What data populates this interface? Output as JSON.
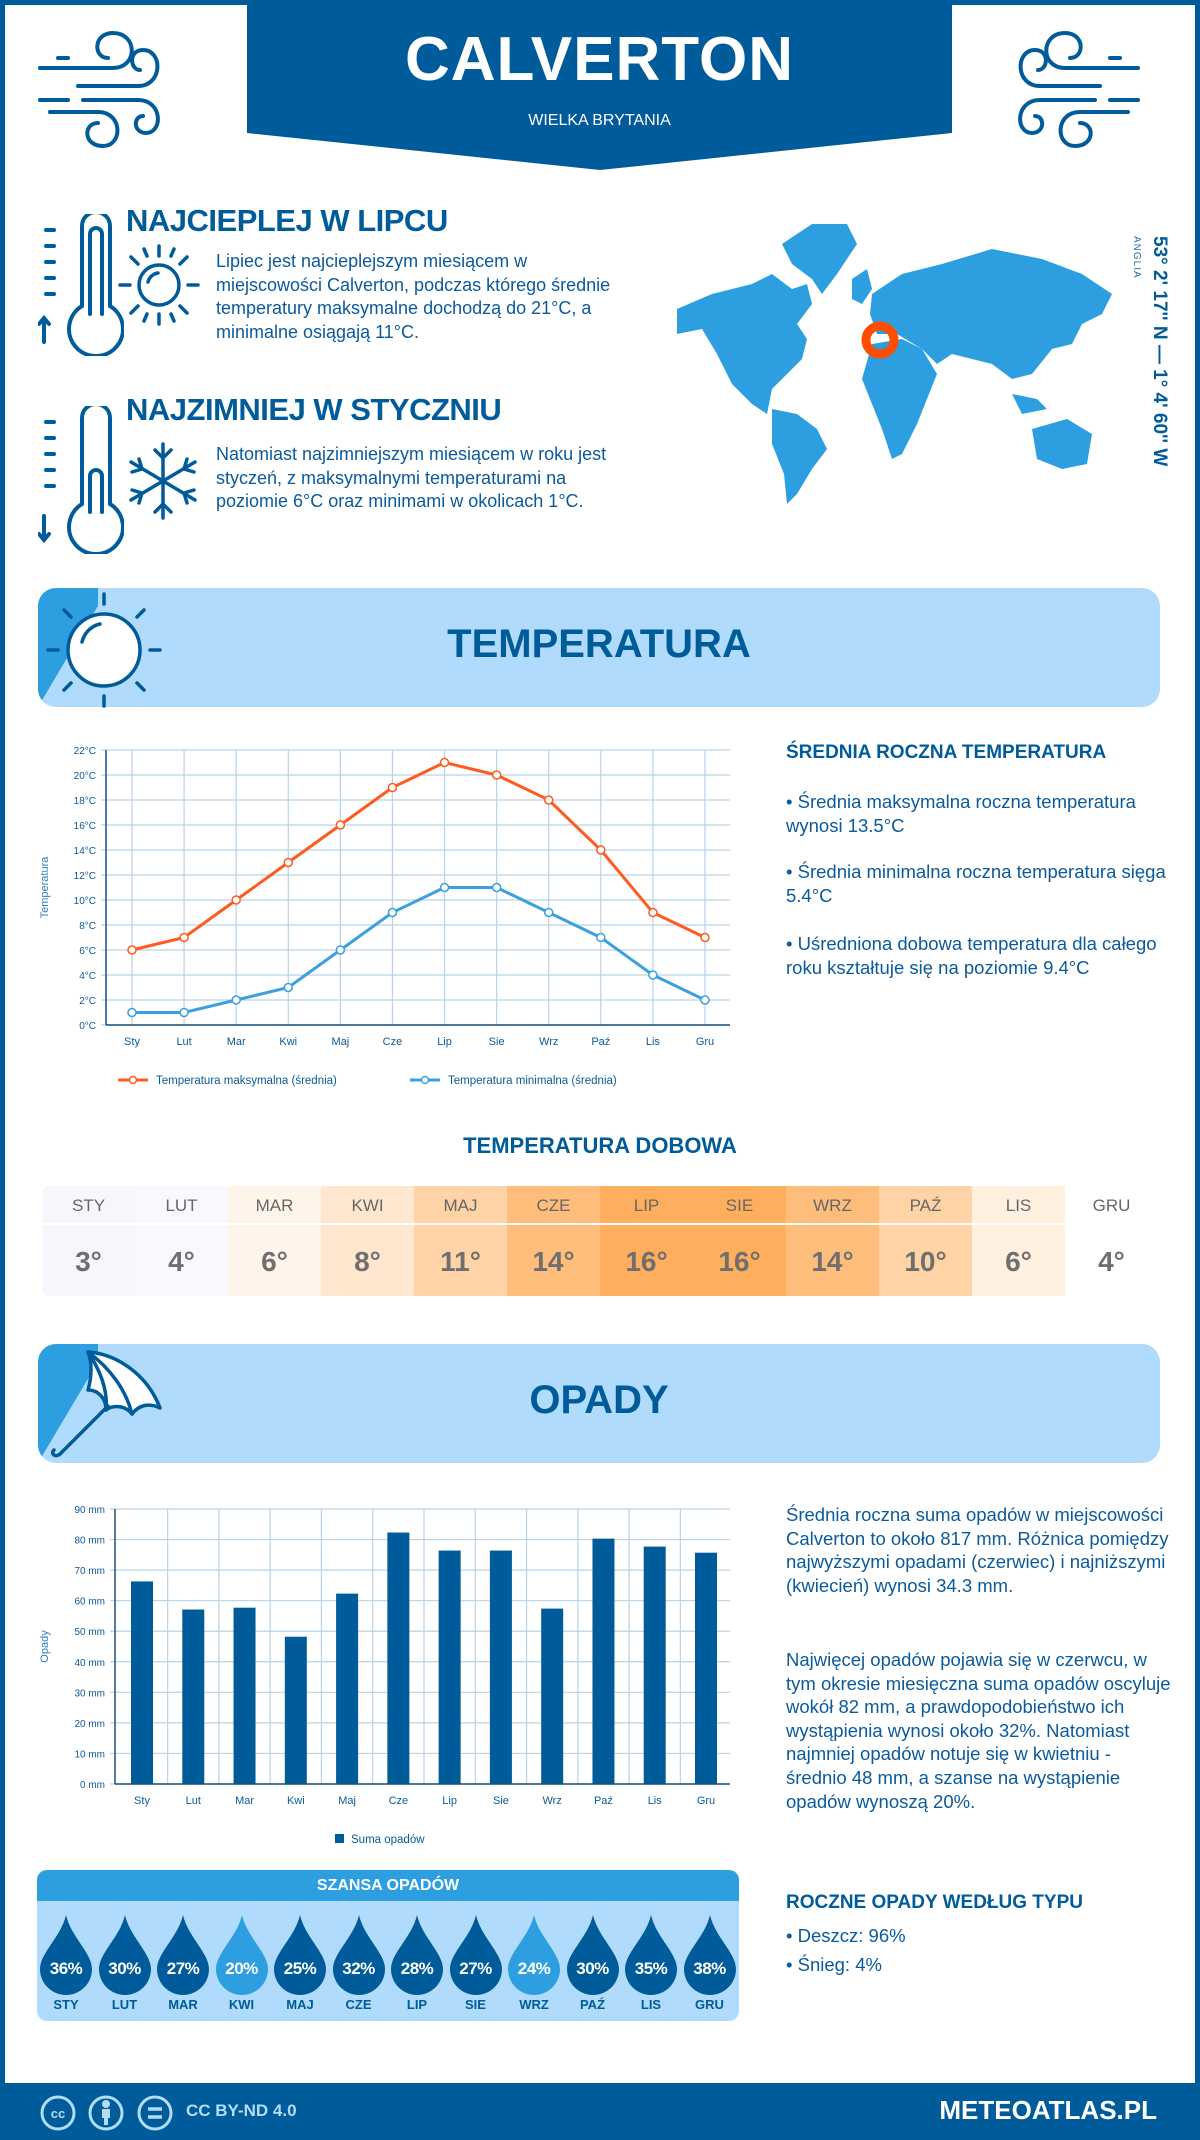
{
  "header": {
    "title": "CALVERTON",
    "subtitle": "WIELKA BRYTANIA"
  },
  "warmest": {
    "heading": "NAJCIEPLEJ W LIPCU",
    "text": "Lipiec jest najcieplejszym miesiącem w miejscowości Calverton, podczas którego średnie temperatury maksymalne dochodzą do 21°C, a minimalne osiągają 11°C."
  },
  "coldest": {
    "heading": "NAJZIMNIEJ W STYCZNIU",
    "text": "Natomiast najzimniejszym miesiącem w roku jest styczeń, z maksymalnymi temperaturami na poziomie 6°C oraz minimami w okolicach 1°C."
  },
  "location": {
    "coordinates": "53° 2' 17'' N — 1° 4' 60'' W",
    "region": "ANGLIA"
  },
  "temperature_section": {
    "title": "TEMPERATURA"
  },
  "annual_temp": {
    "heading": "ŚREDNIA ROCZNA TEMPERATURA",
    "bullets": [
      "• Średnia maksymalna roczna temperatura wynosi 13.5°C",
      "• Średnia minimalna roczna temperatura sięga 5.4°C",
      "• Uśredniona dobowa temperatura dla całego roku kształtuje się na poziomie 9.4°C"
    ]
  },
  "daily_temp": {
    "title": "TEMPERATURA DOBOWA",
    "months": [
      "STY",
      "LUT",
      "MAR",
      "KWI",
      "MAJ",
      "CZE",
      "LIP",
      "SIE",
      "WRZ",
      "PAŹ",
      "LIS",
      "GRU"
    ],
    "values": [
      "3°",
      "4°",
      "6°",
      "8°",
      "11°",
      "14°",
      "16°",
      "16°",
      "14°",
      "10°",
      "6°",
      "4°"
    ],
    "colors": [
      "#f5f7fd",
      "#f8f8fe",
      "#fff4ea",
      "#ffe6cf",
      "#ffd3a5",
      "#ffbd7c",
      "#ffae5e",
      "#ffae5e",
      "#ffbd7c",
      "#ffd3a5",
      "#fff0e0",
      "#ffffff"
    ]
  },
  "precip_section": {
    "title": "OPADY"
  },
  "precip_text": {
    "p1": "Średnia roczna suma opadów w miejscowości Calverton to około 817 mm. Różnica pomiędzy najwyższymi opadami (czerwiec) i najniższymi (kwiecień) wynosi 34.3 mm.",
    "p2": "Najwięcej opadów pojawia się w czerwcu, w tym okresie miesięczna suma opadów oscyluje wokół 82 mm, a prawdopodobieństwo ich wystąpienia wynosi około 32%. Natomiast najmniej opadów notuje się w kwietniu - średnio 48 mm, a szanse na wystąpienie opadów wynoszą 20%."
  },
  "chance": {
    "title": "SZANSA OPADÓW",
    "months": [
      "STY",
      "LUT",
      "MAR",
      "KWI",
      "MAJ",
      "CZE",
      "LIP",
      "SIE",
      "WRZ",
      "PAŹ",
      "LIS",
      "GRU"
    ],
    "values": [
      "36%",
      "30%",
      "27%",
      "20%",
      "25%",
      "32%",
      "28%",
      "27%",
      "24%",
      "30%",
      "35%",
      "38%"
    ],
    "highlight": [
      false,
      false,
      false,
      true,
      false,
      false,
      false,
      false,
      true,
      false,
      false,
      false
    ]
  },
  "precip_type": {
    "heading": "ROCZNE OPADY WEDŁUG TYPU",
    "items": [
      "• Deszcz: 96%",
      "• Śnieg: 4%"
    ]
  },
  "footer": {
    "license": "CC BY-ND 4.0",
    "brand": "METEOATLAS.PL"
  },
  "colors": {
    "dark": "#005b9a",
    "mid": "#2d9fe0",
    "light": "#b0dbfc",
    "max": "#ff5a1f",
    "min": "#3aa0e0"
  },
  "chart_data": [
    {
      "type": "line",
      "categories": [
        "Sty",
        "Lut",
        "Mar",
        "Kwi",
        "Maj",
        "Cze",
        "Lip",
        "Sie",
        "Wrz",
        "Paź",
        "Lis",
        "Gru"
      ],
      "series": [
        {
          "name": "Temperatura maksymalna (średnia)",
          "values": [
            6,
            7,
            10,
            13,
            16,
            19,
            21,
            20,
            18,
            14,
            9,
            7
          ]
        },
        {
          "name": "Temperatura minimalna (średnia)",
          "values": [
            1,
            1,
            2,
            3,
            6,
            9,
            11,
            11,
            9,
            7,
            4,
            2
          ]
        }
      ],
      "ylabel": "Temperatura",
      "ylim": [
        0,
        22
      ],
      "yticks": [
        "0°C",
        "2°C",
        "4°C",
        "6°C",
        "8°C",
        "10°C",
        "12°C",
        "14°C",
        "16°C",
        "18°C",
        "20°C",
        "22°C"
      ],
      "grid": true,
      "legend": "bottom"
    },
    {
      "type": "bar",
      "categories": [
        "Sty",
        "Lut",
        "Mar",
        "Kwi",
        "Maj",
        "Cze",
        "Lip",
        "Sie",
        "Wrz",
        "Paź",
        "Lis",
        "Gru"
      ],
      "series": [
        {
          "name": "Suma opadów",
          "values": [
            66.3,
            57.1,
            57.7,
            48.2,
            62.3,
            82.3,
            76.4,
            76.4,
            57.4,
            80.3,
            77.7,
            75.7
          ]
        }
      ],
      "ylabel": "Opady",
      "ylim": [
        0,
        90
      ],
      "yticks": [
        "0 mm",
        "10 mm",
        "20 mm",
        "30 mm",
        "40 mm",
        "50 mm",
        "60 mm",
        "70 mm",
        "80 mm",
        "90 mm"
      ],
      "grid": true,
      "legend": "bottom"
    }
  ]
}
